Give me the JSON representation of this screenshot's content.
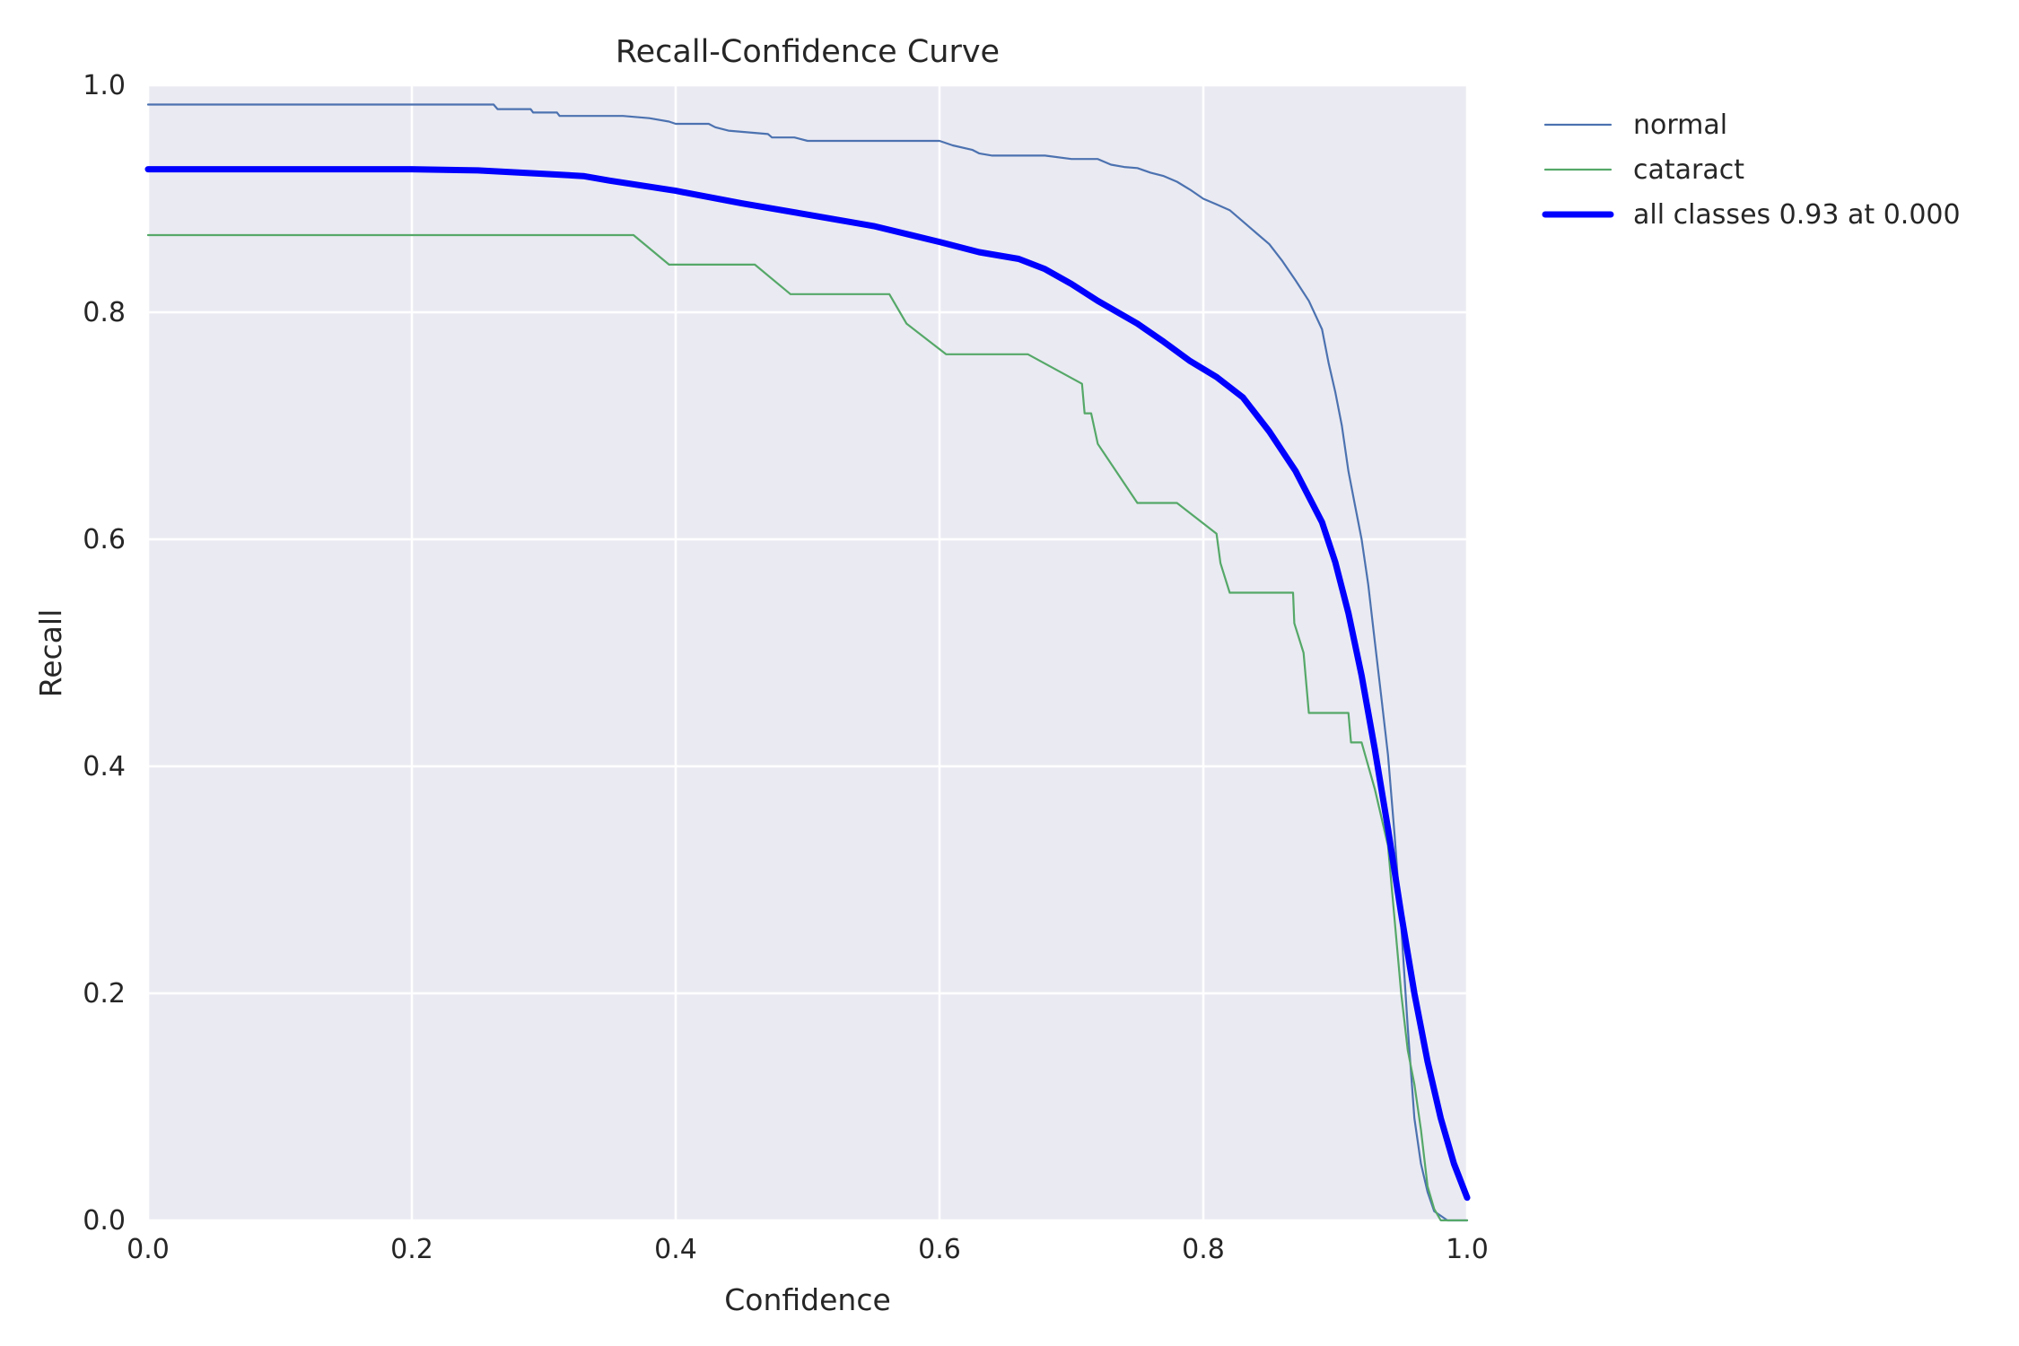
{
  "chart_data": {
    "type": "line",
    "title": "Recall-Confidence Curve",
    "xlabel": "Confidence",
    "ylabel": "Recall",
    "xlim": [
      0,
      1
    ],
    "ylim": [
      0,
      1
    ],
    "xticks": [
      "0.0",
      "0.2",
      "0.4",
      "0.6",
      "0.8",
      "1.0"
    ],
    "yticks": [
      "0.0",
      "0.2",
      "0.4",
      "0.6",
      "0.8",
      "1.0"
    ],
    "grid": true,
    "legend_position": "outside-top-right",
    "series": [
      {
        "name": "normal",
        "color": "#4c72b0",
        "width": "thin",
        "points": [
          [
            0.0,
            0.983
          ],
          [
            0.262,
            0.983
          ],
          [
            0.265,
            0.979
          ],
          [
            0.29,
            0.979
          ],
          [
            0.292,
            0.976
          ],
          [
            0.31,
            0.976
          ],
          [
            0.312,
            0.973
          ],
          [
            0.36,
            0.973
          ],
          [
            0.38,
            0.971
          ],
          [
            0.395,
            0.968
          ],
          [
            0.4,
            0.966
          ],
          [
            0.425,
            0.966
          ],
          [
            0.43,
            0.963
          ],
          [
            0.44,
            0.96
          ],
          [
            0.47,
            0.957
          ],
          [
            0.473,
            0.954
          ],
          [
            0.49,
            0.954
          ],
          [
            0.5,
            0.951
          ],
          [
            0.6,
            0.951
          ],
          [
            0.61,
            0.947
          ],
          [
            0.625,
            0.943
          ],
          [
            0.63,
            0.94
          ],
          [
            0.64,
            0.938
          ],
          [
            0.68,
            0.938
          ],
          [
            0.7,
            0.935
          ],
          [
            0.72,
            0.935
          ],
          [
            0.73,
            0.93
          ],
          [
            0.74,
            0.928
          ],
          [
            0.75,
            0.927
          ],
          [
            0.76,
            0.923
          ],
          [
            0.77,
            0.92
          ],
          [
            0.78,
            0.915
          ],
          [
            0.79,
            0.908
          ],
          [
            0.8,
            0.9
          ],
          [
            0.81,
            0.895
          ],
          [
            0.82,
            0.89
          ],
          [
            0.83,
            0.88
          ],
          [
            0.84,
            0.87
          ],
          [
            0.85,
            0.86
          ],
          [
            0.86,
            0.845
          ],
          [
            0.87,
            0.828
          ],
          [
            0.88,
            0.81
          ],
          [
            0.89,
            0.785
          ],
          [
            0.895,
            0.755
          ],
          [
            0.9,
            0.73
          ],
          [
            0.905,
            0.7
          ],
          [
            0.91,
            0.66
          ],
          [
            0.915,
            0.63
          ],
          [
            0.92,
            0.6
          ],
          [
            0.925,
            0.56
          ],
          [
            0.93,
            0.51
          ],
          [
            0.935,
            0.46
          ],
          [
            0.94,
            0.41
          ],
          [
            0.945,
            0.34
          ],
          [
            0.95,
            0.26
          ],
          [
            0.955,
            0.17
          ],
          [
            0.96,
            0.09
          ],
          [
            0.965,
            0.05
          ],
          [
            0.97,
            0.025
          ],
          [
            0.975,
            0.008
          ],
          [
            0.98,
            0.004
          ],
          [
            0.985,
            0.0
          ],
          [
            1.0,
            0.0
          ]
        ]
      },
      {
        "name": "cataract",
        "color": "#55a868",
        "width": "thin",
        "points": [
          [
            0.0,
            0.868
          ],
          [
            0.368,
            0.868
          ],
          [
            0.395,
            0.842
          ],
          [
            0.46,
            0.842
          ],
          [
            0.487,
            0.816
          ],
          [
            0.562,
            0.816
          ],
          [
            0.575,
            0.79
          ],
          [
            0.605,
            0.763
          ],
          [
            0.667,
            0.763
          ],
          [
            0.708,
            0.737
          ],
          [
            0.71,
            0.711
          ],
          [
            0.715,
            0.711
          ],
          [
            0.72,
            0.684
          ],
          [
            0.75,
            0.632
          ],
          [
            0.78,
            0.632
          ],
          [
            0.81,
            0.605
          ],
          [
            0.813,
            0.579
          ],
          [
            0.82,
            0.553
          ],
          [
            0.868,
            0.553
          ],
          [
            0.869,
            0.526
          ],
          [
            0.876,
            0.5
          ],
          [
            0.88,
            0.447
          ],
          [
            0.91,
            0.447
          ],
          [
            0.912,
            0.421
          ],
          [
            0.92,
            0.421
          ],
          [
            0.93,
            0.38
          ],
          [
            0.94,
            0.33
          ],
          [
            0.95,
            0.2
          ],
          [
            0.955,
            0.15
          ],
          [
            0.96,
            0.12
          ],
          [
            0.965,
            0.08
          ],
          [
            0.97,
            0.03
          ],
          [
            0.975,
            0.01
          ],
          [
            0.98,
            0.0
          ],
          [
            1.0,
            0.0
          ]
        ]
      },
      {
        "name": "all classes 0.93 at 0.000",
        "color": "#0000ff",
        "width": "thick",
        "points": [
          [
            0.0,
            0.926
          ],
          [
            0.2,
            0.926
          ],
          [
            0.25,
            0.925
          ],
          [
            0.3,
            0.922
          ],
          [
            0.33,
            0.92
          ],
          [
            0.35,
            0.916
          ],
          [
            0.4,
            0.907
          ],
          [
            0.45,
            0.896
          ],
          [
            0.5,
            0.886
          ],
          [
            0.55,
            0.876
          ],
          [
            0.6,
            0.862
          ],
          [
            0.63,
            0.853
          ],
          [
            0.66,
            0.847
          ],
          [
            0.68,
            0.838
          ],
          [
            0.7,
            0.825
          ],
          [
            0.72,
            0.81
          ],
          [
            0.75,
            0.79
          ],
          [
            0.77,
            0.774
          ],
          [
            0.79,
            0.757
          ],
          [
            0.81,
            0.743
          ],
          [
            0.83,
            0.725
          ],
          [
            0.85,
            0.695
          ],
          [
            0.87,
            0.66
          ],
          [
            0.89,
            0.615
          ],
          [
            0.9,
            0.58
          ],
          [
            0.91,
            0.535
          ],
          [
            0.92,
            0.48
          ],
          [
            0.93,
            0.415
          ],
          [
            0.94,
            0.345
          ],
          [
            0.95,
            0.27
          ],
          [
            0.96,
            0.2
          ],
          [
            0.97,
            0.14
          ],
          [
            0.98,
            0.09
          ],
          [
            0.99,
            0.05
          ],
          [
            1.0,
            0.02
          ]
        ]
      }
    ]
  }
}
